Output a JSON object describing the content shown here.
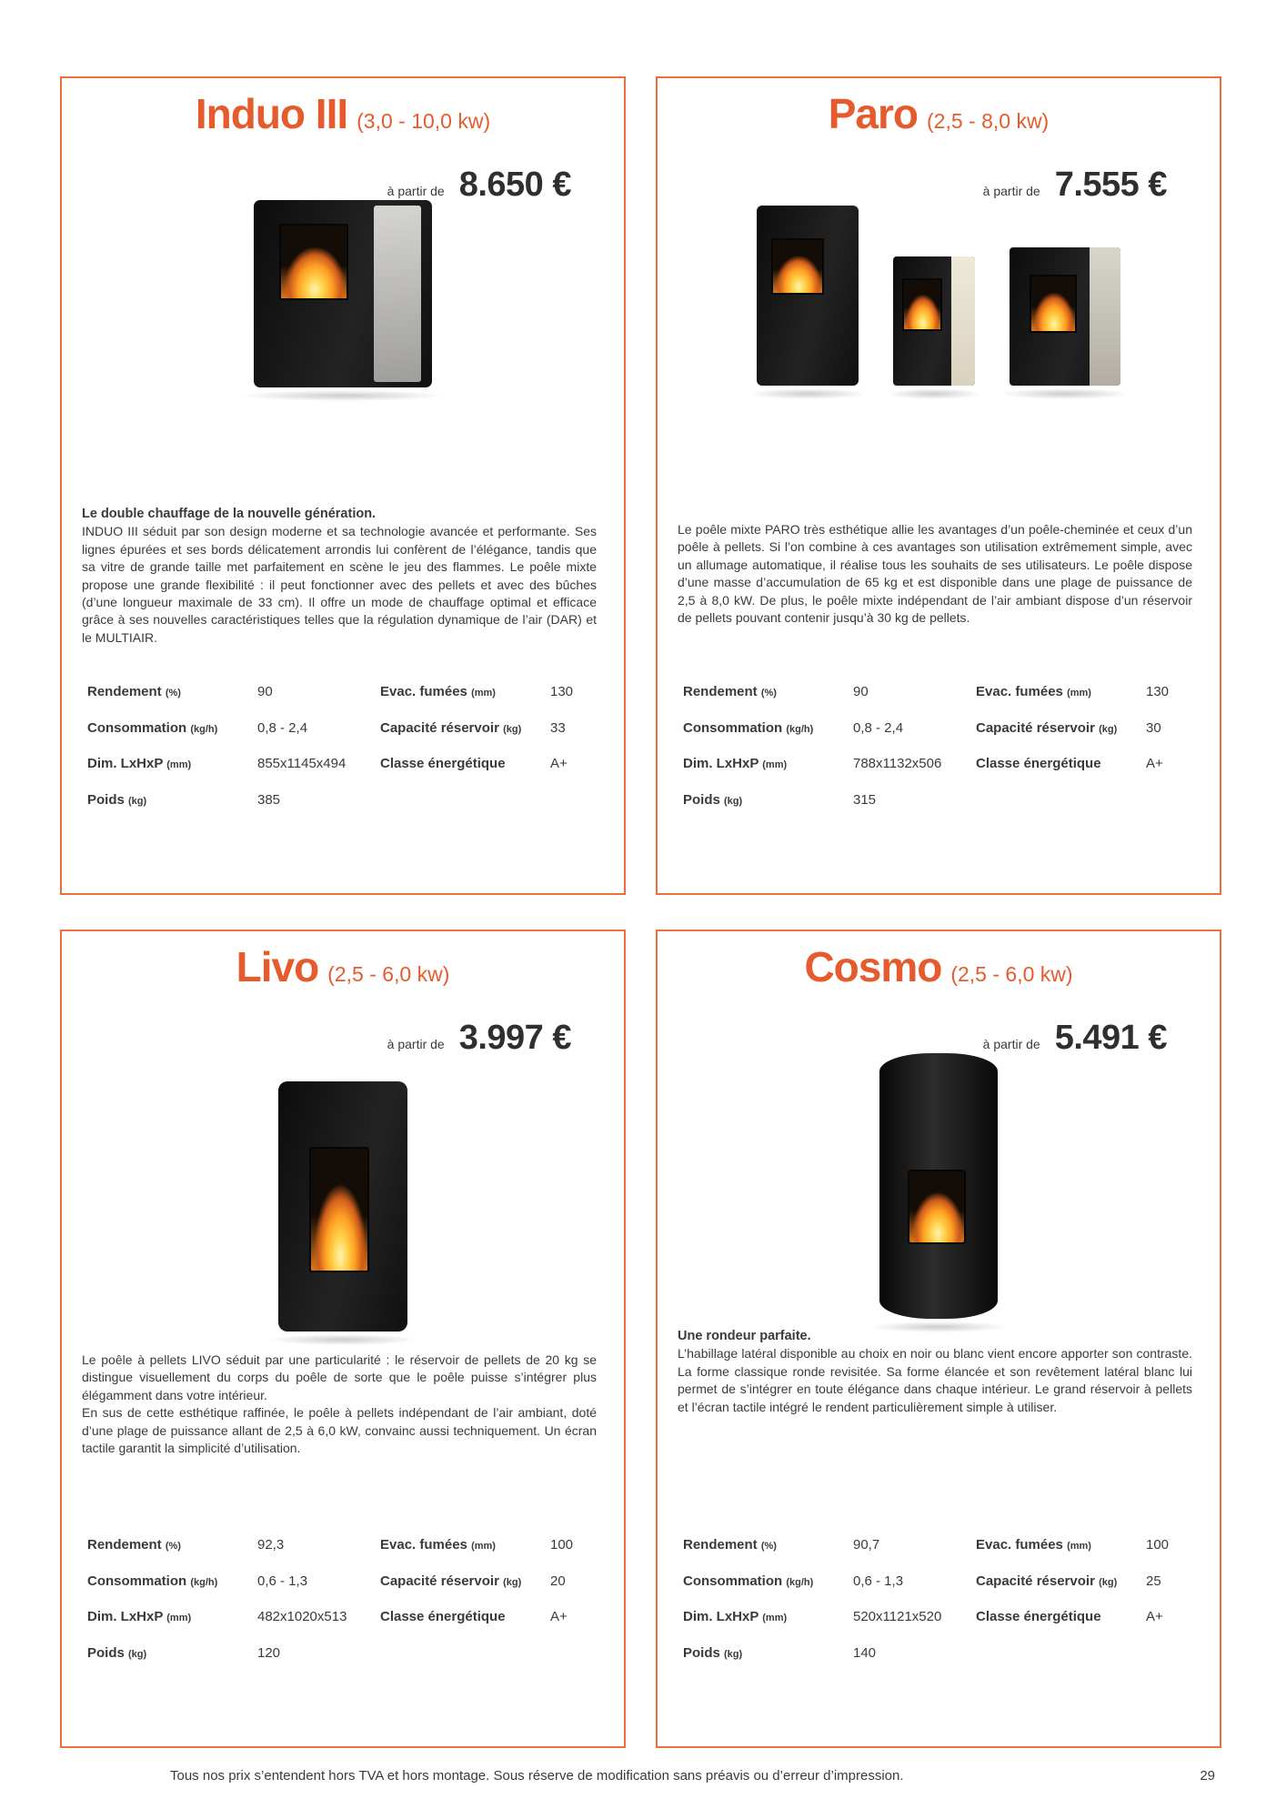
{
  "page": {
    "accent_color": "#e55b2d",
    "from_price_label": "à partir de",
    "footer_note": "Tous nos prix s’entendent hors TVA et hors montage. Sous réserve de modification sans préavis ou d’erreur d’impression.",
    "page_number": "29"
  },
  "products": [
    {
      "name": "Induo III",
      "power_range": "(3,0 - 10,0 kw)",
      "price": "8.650 €",
      "image_alt": "Poêle mixte Induo III noir avec panneau latéral gris et vitre avec flammes",
      "heading": "Le double chauffage de la nouvelle génération.",
      "paragraphs": [
        "INDUO III séduit par son design moderne et sa technologie avancée et performante. Ses lignes épurées et ses bords délicatement arrondis lui confèrent de l’élégance, tandis que sa vitre de grande taille met parfaitement en scène le jeu des flammes. Le poêle mixte propose une grande flexibilité : il peut fonctionner avec des pellets et avec des bûches (d’une longueur maximale de 33 cm). Il offre un mode de chauffage optimal et efficace grâce à ses nouvelles caractéristiques telles que la régulation dynamique de l’air (DAR) et le MULTIAIR."
      ],
      "specs_left": [
        {
          "label": "Rendement",
          "unit": "(%)",
          "value": "90"
        },
        {
          "label": "Consommation",
          "unit": "(kg/h)",
          "value": "0,8 - 2,4"
        },
        {
          "label": "Dim. LxHxP",
          "unit": "(mm)",
          "value": "855x1145x494"
        },
        {
          "label": "Poids",
          "unit": "(kg)",
          "value": "385"
        }
      ],
      "specs_right": [
        {
          "label": "Evac. fumées",
          "unit": "(mm)",
          "value": "130"
        },
        {
          "label": "Capacité réservoir",
          "unit": "(kg)",
          "value": "33"
        },
        {
          "label": "Classe énergétique",
          "unit": "",
          "value": "A+"
        }
      ]
    },
    {
      "name": "Paro",
      "power_range": "(2,5 - 8,0 kw)",
      "price": "7.555 €",
      "image_alt": "Trois poêles mixtes Paro : noir, noir avec panneau latéral crème, noir avec panneau latéral gris pierre",
      "heading": "",
      "paragraphs": [
        "Le poêle mixte PARO très esthétique allie les avantages d’un poêle-cheminée et ceux d’un poêle à pellets. Si l’on combine à ces avantages son utilisation extrêmement simple, avec un allumage automatique, il réalise tous les souhaits de ses utilisateurs. Le poêle dispose d’une masse d’accumulation de 65 kg et est disponible dans une plage de puissance de 2,5 à 8,0 kW. De plus, le poêle mixte indépendant de l’air ambiant dispose d’un réservoir de pellets pouvant contenir jusqu’à 30 kg de pellets."
      ],
      "specs_left": [
        {
          "label": "Rendement",
          "unit": "(%)",
          "value": "90"
        },
        {
          "label": "Consommation",
          "unit": "(kg/h)",
          "value": "0,8 - 2,4"
        },
        {
          "label": "Dim. LxHxP",
          "unit": "(mm)",
          "value": "788x1132x506"
        },
        {
          "label": "Poids",
          "unit": "(kg)",
          "value": "315"
        }
      ],
      "specs_right": [
        {
          "label": "Evac. fumées",
          "unit": "(mm)",
          "value": "130"
        },
        {
          "label": "Capacité réservoir",
          "unit": "(kg)",
          "value": "30"
        },
        {
          "label": "Classe énergétique",
          "unit": "",
          "value": "A+"
        }
      ]
    },
    {
      "name": "Livo",
      "power_range": "(2,5 - 6,0 kw)",
      "price": "3.997 €",
      "image_alt": "Poêle à pellets Livo noir élancé avec grande vitre et flammes",
      "heading": "",
      "paragraphs": [
        "Le poêle à pellets LIVO séduit par une particularité : le réservoir de pellets de 20 kg se distingue visuellement du corps du poêle de sorte que le poêle puisse s’intégrer plus élégamment dans votre intérieur.",
        "En sus de cette esthétique raffinée, le poêle à pellets indépendant de l’air ambiant, doté d’une plage de puissance allant de 2,5 à 6,0 kW, convainc aussi techniquement. Un écran tactile garantit la simplicité d’utilisation."
      ],
      "specs_left": [
        {
          "label": "Rendement",
          "unit": "(%)",
          "value": "92,3"
        },
        {
          "label": "Consommation",
          "unit": "(kg/h)",
          "value": "0,6 - 1,3"
        },
        {
          "label": "Dim. LxHxP",
          "unit": "(mm)",
          "value": "482x1020x513"
        },
        {
          "label": "Poids",
          "unit": "(kg)",
          "value": "120"
        }
      ],
      "specs_right": [
        {
          "label": "Evac. fumées",
          "unit": "(mm)",
          "value": "100"
        },
        {
          "label": "Capacité réservoir",
          "unit": "(kg)",
          "value": "20"
        },
        {
          "label": "Classe énergétique",
          "unit": "",
          "value": "A+"
        }
      ]
    },
    {
      "name": "Cosmo",
      "power_range": "(2,5 - 6,0 kw)",
      "price": "5.491 €",
      "image_alt": "Poêle à pellets Cosmo noir de forme ronde avec vitre et flammes",
      "heading": "Une rondeur parfaite.",
      "paragraphs": [
        "L’habillage latéral disponible au choix en noir ou blanc vient encore apporter son contraste. La forme classique ronde revisitée. Sa forme élancée et son revêtement latéral blanc lui permet de s’intégrer en toute élégance dans chaque intérieur. Le grand réservoir à pellets et l’écran tactile intégré le rendent particulièrement simple à utiliser."
      ],
      "specs_left": [
        {
          "label": "Rendement",
          "unit": "(%)",
          "value": "90,7"
        },
        {
          "label": "Consommation",
          "unit": "(kg/h)",
          "value": "0,6 - 1,3"
        },
        {
          "label": "Dim. LxHxP",
          "unit": "(mm)",
          "value": "520x1121x520"
        },
        {
          "label": "Poids",
          "unit": "(kg)",
          "value": "140"
        }
      ],
      "specs_right": [
        {
          "label": "Evac. fumées",
          "unit": "(mm)",
          "value": "100"
        },
        {
          "label": "Capacité réservoir",
          "unit": "(kg)",
          "value": "25"
        },
        {
          "label": "Classe énergétique",
          "unit": "",
          "value": "A+"
        }
      ]
    }
  ]
}
